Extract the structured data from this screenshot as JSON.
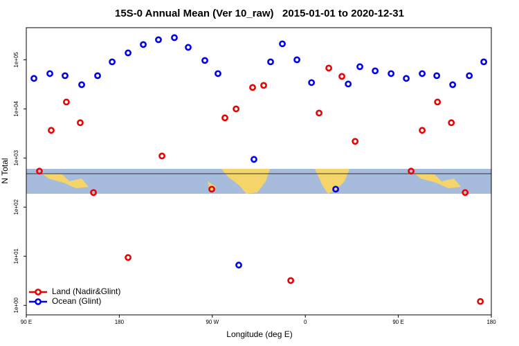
{
  "chart_data": {
    "type": "scatter",
    "title": "15S-0 Annual Mean (Ver 10_raw)   2015-01-01 to 2020-12-31",
    "x_label": "Longitude (deg E)",
    "y_label": "N Total",
    "log_y": true,
    "legend": "lower left",
    "xlim": [
      90,
      540
    ],
    "xticks": [
      {
        "value": 90,
        "label": "90 E"
      },
      {
        "value": 180,
        "label": "180"
      },
      {
        "value": 270,
        "label": "90 W"
      },
      {
        "value": 360,
        "label": "0"
      },
      {
        "value": 450,
        "label": "90 E"
      },
      {
        "value": 540,
        "label": "180"
      }
    ],
    "ylim": [
      0.64,
      450000
    ],
    "yticks": [
      {
        "value": 1,
        "label": "1e+00"
      },
      {
        "value": 10,
        "label": "1e+01"
      },
      {
        "value": 100,
        "label": "1e+02"
      },
      {
        "value": 1000,
        "label": "1e+03"
      },
      {
        "value": 10000,
        "label": "1e+04"
      },
      {
        "value": 100000,
        "label": "1e+05"
      }
    ],
    "series": [
      {
        "name": "Land (Nadir&Glint)",
        "color": "#ee0000",
        "x": [
          102.7,
          114.1,
          128.8,
          142.2,
          155.0,
          188.5,
          221.3,
          269.5,
          282.2,
          293.0,
          309.0,
          319.7,
          345.9,
          373.3,
          382.7,
          395.4,
          408.2,
          462.4,
          473.1,
          487.9,
          501.3,
          514.7,
          529.4
        ],
        "values": [
          540,
          3660,
          13800,
          5230,
          198,
          9.4,
          1100,
          232,
          6560,
          10000,
          27300,
          30100,
          3.2,
          8230,
          67800,
          45900,
          2180,
          540,
          3660,
          13800,
          5230,
          198,
          1.2
        ]
      },
      {
        "name": "Ocean (Glint)",
        "color": "#0000ee",
        "x": [
          97.4,
          112.8,
          127.5,
          143.6,
          159.0,
          173.1,
          188.5,
          203.2,
          217.9,
          233.3,
          246.7,
          262.8,
          275.5,
          295.6,
          310.3,
          326.4,
          337.8,
          351.9,
          366.0,
          389.4,
          401.5,
          412.8,
          427.6,
          443.0,
          457.7,
          473.1,
          487.2,
          502.6,
          518.7,
          532.7
        ],
        "values": [
          41700,
          52300,
          47400,
          31100,
          47400,
          90700,
          138000,
          204000,
          256000,
          282000,
          179000,
          96800,
          52300,
          6.6,
          938,
          90700,
          211000,
          100000,
          34300,
          232,
          32100,
          72300,
          59500,
          52300,
          41700,
          52300,
          47400,
          31100,
          47400,
          90700
        ]
      }
    ]
  }
}
